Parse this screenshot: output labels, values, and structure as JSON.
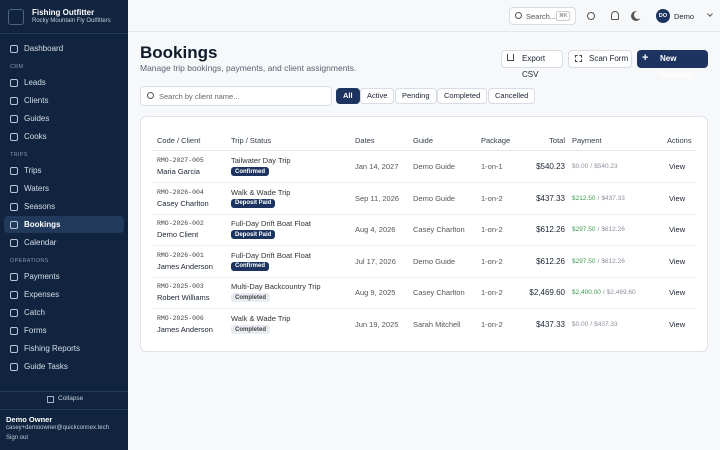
{
  "sidebar": {
    "brand": {
      "title": "Fishing Outfitter",
      "subtitle": "Rocky Mountain Fly Outfitters"
    },
    "nav": [
      {
        "items": [
          "Dashboard"
        ]
      },
      {
        "label": "CRM",
        "items": [
          "Leads",
          "Clients",
          "Guides",
          "Cooks"
        ]
      },
      {
        "label": "TRIPS",
        "items": [
          "Trips",
          "Waters",
          "Seasons",
          "Bookings",
          "Calendar"
        ]
      },
      {
        "label": "OPERATIONS",
        "items": [
          "Payments",
          "Expenses",
          "Catch",
          "Forms",
          "Fishing Reports",
          "Guide Tasks"
        ]
      }
    ],
    "active": "Bookings",
    "collapse": "Collapse",
    "user": {
      "name": "Demo Owner",
      "email": "casey+demoowner@quickconnex.tech",
      "signout": "Sign out"
    }
  },
  "topbar": {
    "search": "Search...",
    "shortcut": "⌘K",
    "avatar": "DO",
    "user": "Demo"
  },
  "header": {
    "title": "Bookings",
    "subtitle": "Manage trip bookings, payments, and client assignments.",
    "buttons": {
      "export": "Export CSV",
      "scan": "Scan Form",
      "new": "New Booking"
    }
  },
  "search_placeholder": "Search by client name...",
  "filters": [
    "All",
    "Active",
    "Pending",
    "Completed",
    "Cancelled"
  ],
  "active_filter": "All",
  "table": {
    "columns": [
      "Code / Client",
      "Trip / Status",
      "Dates",
      "Guide",
      "Package",
      "Total",
      "Payment",
      "Actions"
    ],
    "rows": [
      {
        "code": "RMO-2027-005",
        "client": "Maria Garcia",
        "trip": "Tailwater Day Trip",
        "status": "Confirmed",
        "status_color": "#1d3461",
        "date": "Jan 14, 2027",
        "guide": "Demo Guide",
        "package": "1-on-1",
        "total": "$540.23",
        "paid": "$0.00",
        "due": "$540.23",
        "paid_color": "#8a919c",
        "action": "View"
      },
      {
        "code": "RMO-2026-004",
        "client": "Casey Charlton",
        "trip": "Walk & Wade Trip",
        "status": "Deposit Paid",
        "status_color": "#1d3461",
        "date": "Sep 11, 2026",
        "guide": "Demo Guide",
        "package": "1-on-2",
        "total": "$437.33",
        "paid": "$212.50",
        "due": "$437.33",
        "paid_color": "#3f9b4f",
        "action": "View"
      },
      {
        "code": "RMO-2026-002",
        "client": "Demo Client",
        "trip": "Full-Day Drift Boat Float",
        "status": "Deposit Paid",
        "status_color": "#1d3461",
        "date": "Aug 4, 2026",
        "guide": "Casey Charlton",
        "package": "1-on-2",
        "total": "$612.26",
        "paid": "$297.50",
        "due": "$612.26",
        "paid_color": "#3f9b4f",
        "action": "View"
      },
      {
        "code": "RMO-2026-001",
        "client": "James Anderson",
        "trip": "Full-Day Drift Boat Float",
        "status": "Confirmed",
        "status_color": "#1d3461",
        "date": "Jul 17, 2026",
        "guide": "Demo Guide",
        "package": "1-on-2",
        "total": "$612.26",
        "paid": "$297.50",
        "due": "$612.26",
        "paid_color": "#3f9b4f",
        "action": "View"
      },
      {
        "code": "RMO-2025-003",
        "client": "Robert Williams",
        "trip": "Multi-Day Backcountry Trip",
        "status": "Completed",
        "status_color": "#e8ebf0",
        "date": "Aug 9, 2025",
        "guide": "Casey Charlton",
        "package": "1-on-2",
        "total": "$2,469.60",
        "paid": "$2,400.00",
        "due": "$2,469.60",
        "paid_color": "#3f9b4f",
        "action": "View"
      },
      {
        "code": "RMO-2025-006",
        "client": "James Anderson",
        "trip": "Walk & Wade Trip",
        "status": "Completed",
        "status_color": "#e8ebf0",
        "date": "Jun 19, 2025",
        "guide": "Sarah Mitchell",
        "package": "1-on-2",
        "total": "$437.33",
        "paid": "$0.00",
        "due": "$437.33",
        "paid_color": "#8a919c",
        "action": "View"
      }
    ]
  }
}
